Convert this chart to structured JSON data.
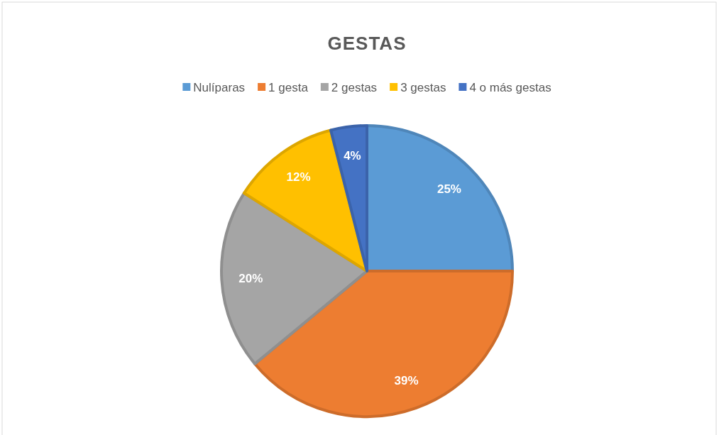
{
  "chart_data": {
    "type": "pie",
    "title": "GESTAS",
    "categories": [
      "Nulíparas",
      "1 gesta",
      "2 gestas",
      "3 gestas",
      "4 o más gestas"
    ],
    "values": [
      25,
      39,
      20,
      12,
      4
    ],
    "colors": [
      "#5b9bd5",
      "#ed7d31",
      "#a5a5a5",
      "#ffc000",
      "#4472c4"
    ],
    "value_labels": [
      "25%",
      "39%",
      "20%",
      "12%",
      "4%"
    ],
    "legend": "top"
  }
}
